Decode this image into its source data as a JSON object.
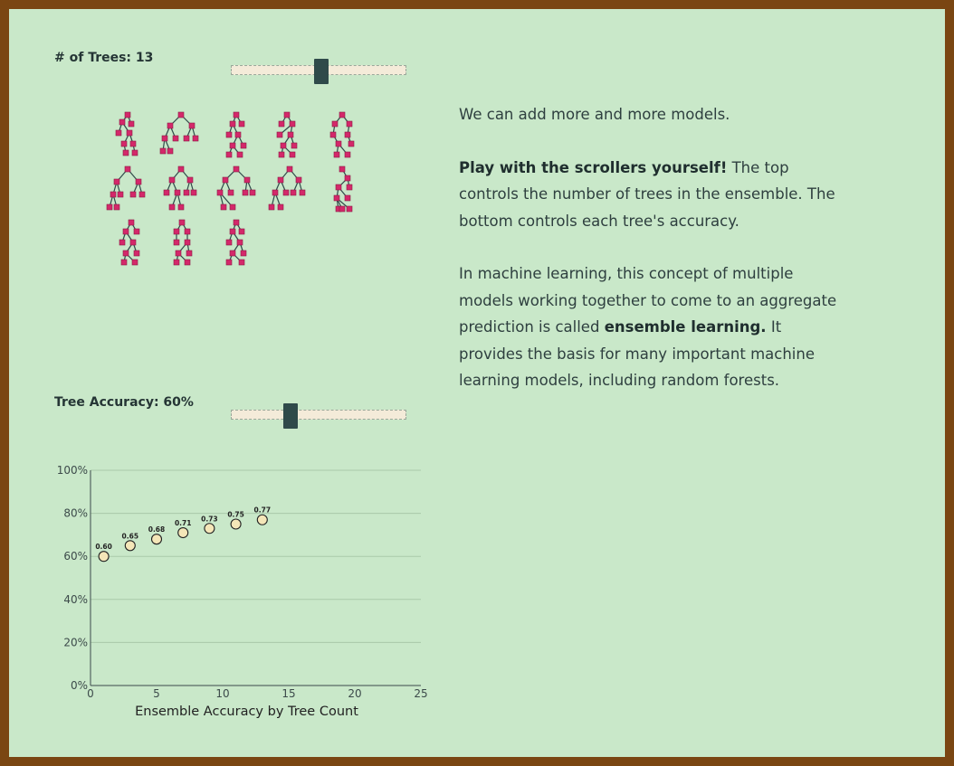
{
  "controls": {
    "trees_label": "# of Trees: 13",
    "trees_value": 13,
    "trees_min": 1,
    "trees_max": 25,
    "accuracy_label": "Tree Accuracy: 60%",
    "accuracy_value": 0.6,
    "accuracy_min": 0.5,
    "accuracy_max": 1.0
  },
  "trees": {
    "count": 13,
    "node_color": "#d4286a",
    "edge_color": "#2f4a4a"
  },
  "prose": {
    "p1": "We can add more and more models.",
    "p2_bold": "Play with the scrollers yourself!",
    "p2_rest": " The top controls the number of trees in the ensemble. The bottom controls each tree's accuracy.",
    "p3_a": "In machine learning, this concept of multiple models working together to come to an aggregate prediction is called ",
    "p3_bold": "ensemble learning.",
    "p3_b": " It provides the basis for many important machine learning models, including random forests."
  },
  "chart_data": {
    "type": "scatter",
    "xlabel": "Ensemble Accuracy by Tree Count",
    "ylabel": "",
    "xlim": [
      0,
      25
    ],
    "ylim": [
      0,
      1
    ],
    "x_ticks": [
      "0",
      "5",
      "10",
      "15",
      "20",
      "25"
    ],
    "y_ticks": [
      "0%",
      "20%",
      "40%",
      "60%",
      "80%",
      "100%"
    ],
    "grid": true,
    "series": [
      {
        "x": [
          1,
          3,
          5,
          7,
          9,
          11,
          13
        ],
        "y": [
          0.6,
          0.65,
          0.68,
          0.71,
          0.73,
          0.75,
          0.77
        ],
        "labels": [
          "0.60",
          "0.65",
          "0.68",
          "0.71",
          "0.73",
          "0.75",
          "0.77"
        ]
      }
    ],
    "point_fill": "#f4e6b8",
    "point_stroke": "#222222"
  }
}
